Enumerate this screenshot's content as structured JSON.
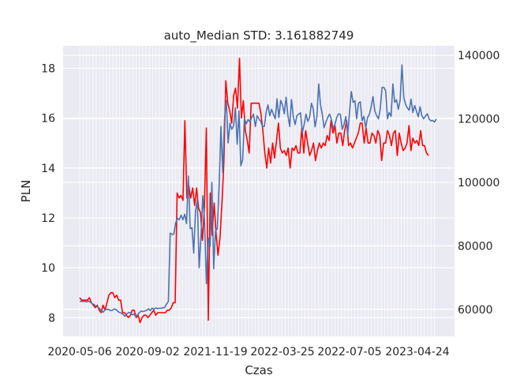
{
  "chart_data": {
    "type": "line",
    "title": "auto_Median STD: 3.161882749",
    "xlabel": "Czas",
    "ylabel": "PLN",
    "ylabel_right": "",
    "ylim_left": [
      7.25,
      18.9
    ],
    "ylim_right": [
      51500,
      143000
    ],
    "yticks_left": [
      8,
      10,
      12,
      14,
      16,
      18
    ],
    "yticks_right": [
      60000,
      80000,
      100000,
      120000,
      140000
    ],
    "yticklabels_right": [
      "60000",
      "80000",
      "100000",
      "120000",
      "140000"
    ],
    "xticks": [
      "2020-05-06",
      "2020-09-02",
      "2021-11-19",
      "2022-03-25",
      "2022-07-05",
      "2023-04-24"
    ],
    "grid": true,
    "style": "seaborn-darkgrid",
    "series": [
      {
        "axis": "left",
        "color": "#ff0000",
        "values": [
          8.8,
          8.7,
          8.7,
          8.7,
          8.7,
          8.8,
          8.6,
          8.5,
          8.4,
          8.5,
          8.3,
          8.2,
          8.5,
          8.3,
          8.6,
          8.9,
          9.0,
          9.0,
          8.8,
          8.9,
          8.7,
          8.7,
          8.2,
          8.2,
          8.1,
          8.0,
          8.1,
          8.3,
          8.3,
          8.0,
          8.1,
          7.8,
          8.0,
          8.1,
          8.1,
          8.0,
          8.1,
          8.2,
          8.3,
          8.1,
          8.2,
          8.2,
          8.2,
          8.2,
          8.2,
          8.3,
          8.3,
          8.4,
          8.6,
          8.6,
          13.0,
          12.8,
          12.9,
          12.7,
          15.9,
          12.8,
          13.3,
          12.8,
          13.2,
          12.5,
          13.2,
          12.4,
          12.2,
          11.1,
          12.4,
          15.6,
          7.9,
          13.0,
          11.3,
          12.6,
          11.4,
          10.5,
          11.2,
          12.6,
          14.2,
          17.5,
          16.6,
          16.3,
          15.8,
          16.9,
          17.2,
          16.4,
          18.4,
          16.0,
          16.7,
          15.5,
          15.1,
          14.6,
          16.6,
          16.6,
          16.6,
          16.6,
          16.6,
          16.2,
          15.5,
          14.6,
          14.0,
          14.8,
          14.2,
          15.0,
          14.4,
          15.1,
          15.8,
          14.8,
          14.6,
          14.7,
          14.5,
          14.8,
          14.0,
          14.8,
          14.7,
          14.9,
          14.6,
          14.6,
          15.6,
          14.6,
          15.5,
          15.0,
          14.5,
          14.7,
          15.0,
          14.3,
          14.7,
          15.0,
          14.8,
          15.0,
          14.9,
          15.3,
          15.1,
          15.9,
          15.4,
          15.7,
          15.0,
          15.4,
          15.4,
          14.9,
          15.5,
          15.9,
          14.9,
          15.0,
          14.8,
          15.0,
          15.2,
          15.4,
          15.8,
          15.8,
          15.0,
          15.6,
          15.0,
          15.0,
          15.4,
          15.3,
          15.0,
          15.5,
          15.3,
          14.3,
          15.0,
          15.0,
          15.5,
          15.3,
          14.9,
          15.4,
          15.5,
          14.5,
          15.4,
          15.0,
          14.7,
          14.8,
          15.0,
          15.7,
          14.7,
          15.2,
          15.0,
          15.1,
          14.9,
          15.5,
          14.9,
          14.9,
          14.6,
          14.5
        ],
        "x_start": 101,
        "x_end": 543
      },
      {
        "axis": "right",
        "color": "#4c72b0",
        "values": [
          62.5,
          62.6,
          62.5,
          62.5,
          62.4,
          62.6,
          62.2,
          61.8,
          61.5,
          61.0,
          60.7,
          60.3,
          59.5,
          59.1,
          59.9,
          60.0,
          60.0,
          59.6,
          59.7,
          60.1,
          60.0,
          59.4,
          59.0,
          58.8,
          58.4,
          57.8,
          58.6,
          59.0,
          58.9,
          58.3,
          58.5,
          57.7,
          58.3,
          59.0,
          59.5,
          59.3,
          59.5,
          59.7,
          60.2,
          59.6,
          60.4,
          60.0,
          60.5,
          60.2,
          60.4,
          60.3,
          60.5,
          60.6,
          61.7,
          62.5,
          84.0,
          83.6,
          83.7,
          87.2,
          88.7,
          88.2,
          89.7,
          88.2,
          90.0,
          87.0,
          102.0,
          85.5,
          85.7,
          77.7,
          90.9,
          94.5,
          73.1,
          82.7,
          95.8,
          87.5,
          68.1,
          82.5,
          79.8,
          100.0,
          72.8,
          84.6,
          85.5,
          98.8,
          117.6,
          103.1,
          120.0,
          125.8,
          112.4,
          118.6,
          116.7,
          117.8,
          123.5,
          112.0,
          122.5,
          105.2,
          107.2,
          120.0,
          118.4,
          119.8,
          119.0,
          120.4,
          121.5,
          117.6,
          121.0,
          120.0,
          119.2,
          117.6,
          117.6,
          122.1,
          124.4,
          121.0,
          123.0,
          121.4,
          120.0,
          126.3,
          120.4,
          125.8,
          124.4,
          121.6,
          126.8,
          121.0,
          117.6,
          126.1,
          120.7,
          118.2,
          121.0,
          121.5,
          121.9,
          115.8,
          118.2,
          121.5,
          119.2,
          120.5,
          124.9,
          123.1,
          117.5,
          120.7,
          131.0,
          124.4,
          121.3,
          117.2,
          118.9,
          120.4,
          121.5,
          120.0,
          116.9,
          118.3,
          120.5,
          121.6,
          121.4,
          116.7,
          118.2,
          120.7,
          115.0,
          121.8,
          128.6,
          125.2,
          125.7,
          120.0,
          124.9,
          125.4,
          119.4,
          120.8,
          117.2,
          120.4,
          121.4,
          123.8,
          127.0,
          122.5,
          121.0,
          120.0,
          123.1,
          129.9,
          129.9,
          128.8,
          120.0,
          122.0,
          120.8,
          131.0,
          125.2,
          126.0,
          123.0,
          125.8,
          137.0,
          126.8,
          124.5,
          123.4,
          122.7,
          126.2,
          122.0,
          124.2,
          122.4,
          120.7,
          123.8,
          121.0,
          120.0,
          120.9,
          121.6,
          120.0,
          119.4,
          119.5,
          119.0,
          120.0
        ],
        "values_unit_multiplier": 1000,
        "x_start": 101,
        "x_end": 553
      }
    ]
  }
}
